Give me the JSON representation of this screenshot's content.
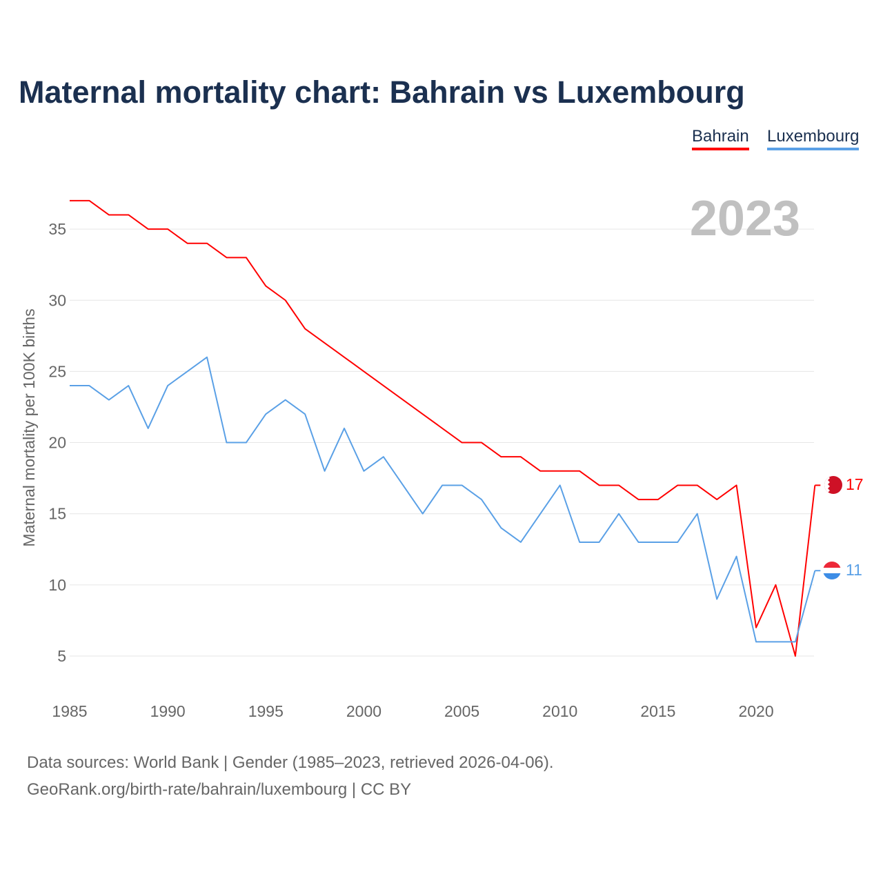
{
  "title": "Maternal mortality chart: Bahrain vs Luxembourg",
  "footer": {
    "line1": "Data sources: World Bank | Gender (1985–2023, retrieved 2026-04-06).",
    "line2": "GeoRank.org/birth-rate/bahrain/luxembourg | CC BY"
  },
  "chart_data": {
    "type": "line",
    "title": "Maternal mortality chart: Bahrain vs Luxembourg",
    "xlabel": "",
    "ylabel": "Maternal mortality per 100K births",
    "year_watermark": "2023",
    "xlim": [
      1985,
      2023
    ],
    "ylim": [
      5,
      35
    ],
    "xticks": [
      1985,
      1990,
      1995,
      2000,
      2005,
      2010,
      2015,
      2020
    ],
    "yticks": [
      5,
      10,
      15,
      20,
      25,
      30,
      35
    ],
    "grid": true,
    "legend_placement": "top-right",
    "x": [
      1985,
      1986,
      1987,
      1988,
      1989,
      1990,
      1991,
      1992,
      1993,
      1994,
      1995,
      1996,
      1997,
      1998,
      1999,
      2000,
      2001,
      2002,
      2003,
      2004,
      2005,
      2006,
      2007,
      2008,
      2009,
      2010,
      2011,
      2012,
      2013,
      2014,
      2015,
      2016,
      2017,
      2018,
      2019,
      2020,
      2021,
      2022,
      2023
    ],
    "series": [
      {
        "name": "Bahrain",
        "color": "#ff0000",
        "end_label": "17",
        "values": [
          37,
          37,
          36,
          36,
          35,
          35,
          34,
          34,
          33,
          33,
          31,
          30,
          28,
          27,
          26,
          25,
          24,
          23,
          22,
          21,
          20,
          20,
          19,
          19,
          18,
          18,
          18,
          17,
          17,
          16,
          16,
          17,
          17,
          16,
          17,
          7,
          10,
          5,
          17
        ]
      },
      {
        "name": "Luxembourg",
        "color": "#5aa0e6",
        "end_label": "11",
        "values": [
          24,
          24,
          23,
          24,
          21,
          24,
          25,
          26,
          20,
          20,
          22,
          23,
          22,
          18,
          21,
          18,
          19,
          17,
          15,
          17,
          17,
          16,
          14,
          13,
          15,
          17,
          13,
          13,
          15,
          13,
          13,
          13,
          15,
          9,
          12,
          6,
          6,
          6,
          11
        ]
      }
    ]
  }
}
